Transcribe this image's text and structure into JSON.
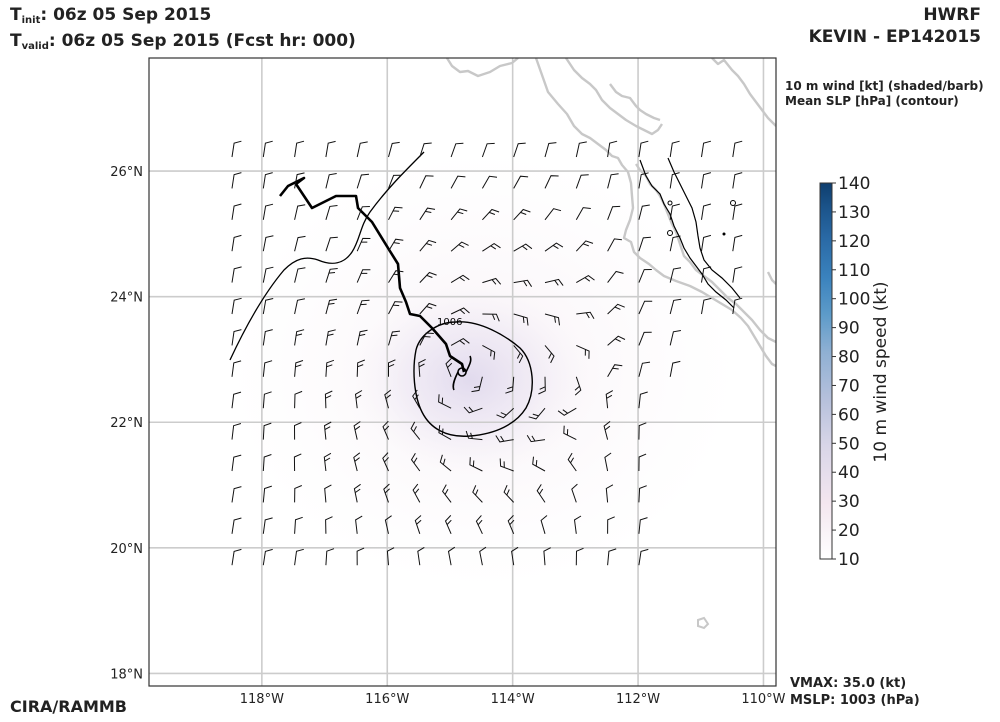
{
  "header": {
    "init_prefix": "T",
    "init_sub": "init",
    "init_text": ":  06z 05 Sep 2015",
    "valid_prefix": "T",
    "valid_sub": "valid",
    "valid_text": ": 06z 05 Sep 2015 (Fcst hr: 000)",
    "model": "HWRF",
    "storm": "KEVIN - EP142015"
  },
  "fields": {
    "shaded": "10 m wind [kt] (shaded/barb)",
    "contour": "Mean SLP [hPa] (contour)"
  },
  "stats": {
    "vmax": "VMAX:  35.0 (kt)",
    "mslp": "MSLP: 1003 (hPa)"
  },
  "footer": {
    "credit": "CIRA/RAMMB"
  },
  "map": {
    "lon_range": [
      -119.8,
      -109.8
    ],
    "lat_range": [
      17.8,
      27.8
    ],
    "lon_ticks": [
      {
        "value": -118,
        "label": "118°W"
      },
      {
        "value": -116,
        "label": "116°W"
      },
      {
        "value": -114,
        "label": "114°W"
      },
      {
        "value": -112,
        "label": "112°W"
      },
      {
        "value": -110,
        "label": "110°W"
      }
    ],
    "lat_ticks": [
      {
        "value": 18,
        "label": "18°N"
      },
      {
        "value": 20,
        "label": "20°N"
      },
      {
        "value": 22,
        "label": "22°N"
      },
      {
        "value": 24,
        "label": "24°N"
      },
      {
        "value": 26,
        "label": "26°N"
      }
    ],
    "grid": true,
    "contour_label": "1006",
    "storm_center": {
      "lon": -114.8,
      "lat": 22.8
    },
    "colors": {
      "grid": "#cccccc",
      "coast": "#c8c8c8",
      "contour": "#000000",
      "track": "#000000",
      "barb": "#111111",
      "shade": "#e8e0f0"
    }
  },
  "colorbar": {
    "label": "10 m wind speed (kt)",
    "min": 10,
    "max": 140,
    "ticks": [
      "140",
      "130",
      "120",
      "110",
      "100",
      "90",
      "80",
      "70",
      "60",
      "50",
      "40",
      "30",
      "20",
      "10"
    ],
    "colors": [
      "#ffffff",
      "#f3e6ef",
      "#d9d6e8",
      "#b7c1dc",
      "#8fb0d3",
      "#5d9bc9",
      "#3a82bd",
      "#2a6aa6",
      "#1c558c",
      "#0e3e6e"
    ]
  }
}
